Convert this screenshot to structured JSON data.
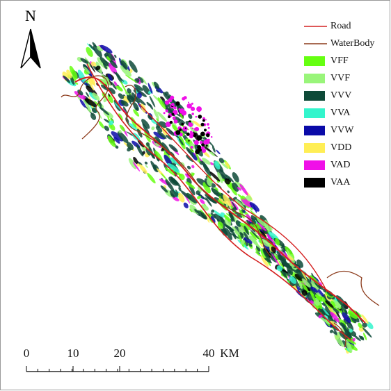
{
  "north_arrow": {
    "label": "N"
  },
  "legend": {
    "lines": [
      {
        "label": "Road",
        "color": "#d42020"
      },
      {
        "label": "WaterBody",
        "color": "#8b3a1a"
      }
    ],
    "classes": [
      {
        "label": "VFF",
        "color": "#66ff11"
      },
      {
        "label": "VVF",
        "color": "#99f57a"
      },
      {
        "label": "VVV",
        "color": "#0e4a38"
      },
      {
        "label": "VVA",
        "color": "#33f5cc"
      },
      {
        "label": "VVW",
        "color": "#0a0aa8"
      },
      {
        "label": "VDD",
        "color": "#ffee55"
      },
      {
        "label": "VAD",
        "color": "#f010e8"
      },
      {
        "label": "VAA",
        "color": "#000000"
      }
    ]
  },
  "scale_bar": {
    "labels": [
      "0",
      "10",
      "20",
      "40"
    ],
    "unit": "KM"
  }
}
